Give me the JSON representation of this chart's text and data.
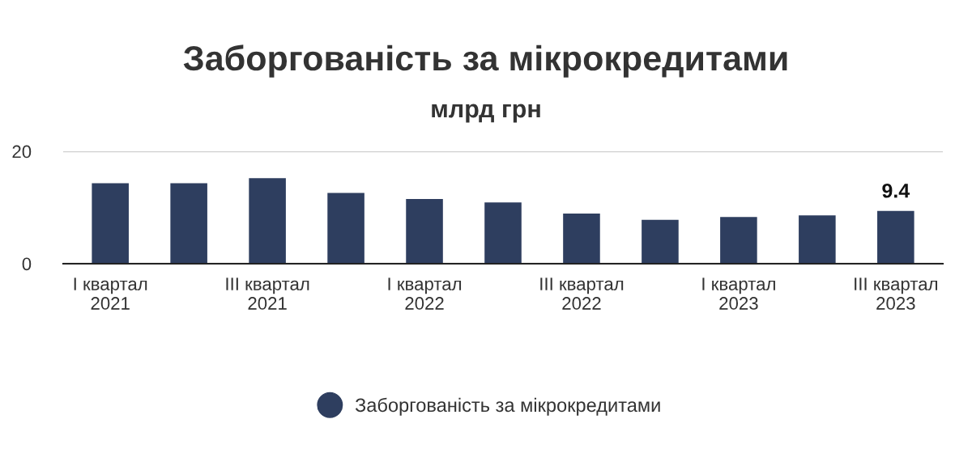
{
  "chart_data": {
    "type": "bar",
    "title": "Заборгованість за мікрокредитами",
    "subtitle": "млрд грн",
    "categories": [
      "I квартал\n2021",
      null,
      "III квартал\n2021",
      null,
      "I квартал\n2022",
      null,
      "III квартал\n2022",
      null,
      "I квартал\n2023",
      null,
      "III квартал\n2023"
    ],
    "series": [
      {
        "name": "Заборгованість за мікрокредитами",
        "color": "#2e3e5f",
        "values": [
          14.3,
          14.3,
          15.2,
          12.6,
          11.5,
          10.9,
          8.9,
          7.8,
          8.3,
          8.6,
          9.4
        ],
        "value_labels": [
          null,
          null,
          null,
          null,
          null,
          null,
          null,
          null,
          null,
          null,
          "9.4"
        ]
      }
    ],
    "ylim": [
      0,
      20
    ],
    "yticks": [
      0,
      20
    ],
    "grid": "y",
    "legend": "bottom"
  }
}
